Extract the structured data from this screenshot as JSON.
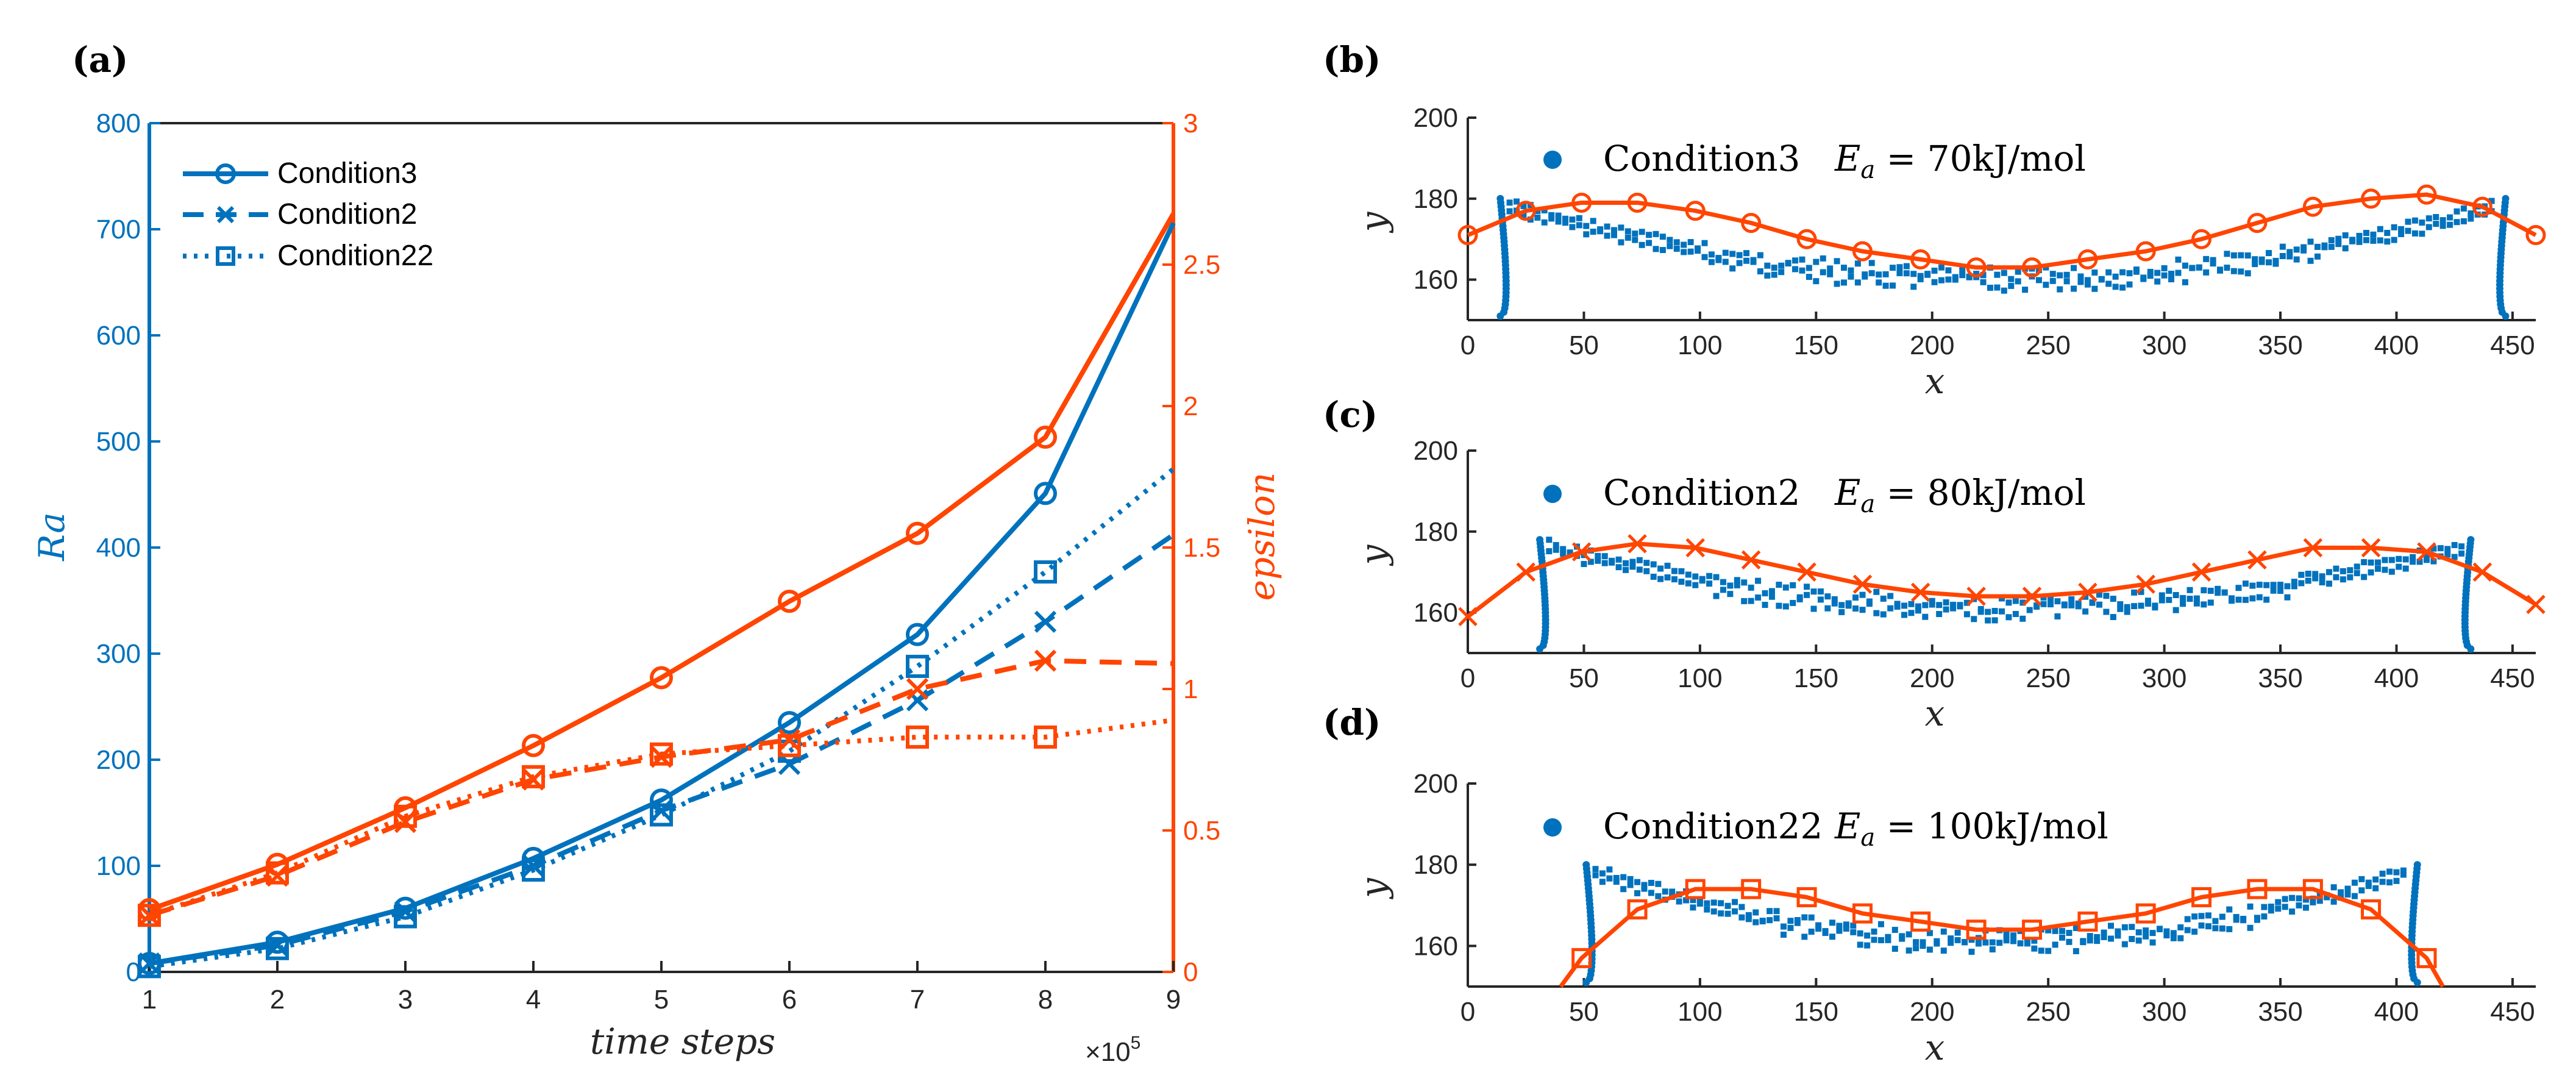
{
  "colors": {
    "blue": "#0072BD",
    "orange": "#FF4500",
    "axis": "#262626",
    "blueTick": "#0072BD"
  },
  "chart_data": [
    {
      "id": "a",
      "panel_label": "(a)",
      "type": "line",
      "xlabel": "time steps",
      "x_multiplier": "×10",
      "x_multiplier_exp": "5",
      "ylabel_left": "Ra",
      "ylabel_right": "epsilon",
      "xlim": [
        1,
        9
      ],
      "ylim_left": [
        0,
        800
      ],
      "ylim_right": [
        0,
        3
      ],
      "xticks": [
        1,
        2,
        3,
        4,
        5,
        6,
        7,
        8,
        9
      ],
      "yticks_left": [
        "0",
        "100",
        "200",
        "300",
        "400",
        "500",
        "600",
        "700",
        "800"
      ],
      "yticks_right": [
        "0",
        "0.5",
        "1",
        "1.5",
        "2",
        "2.5",
        "3"
      ],
      "legend": [
        "Condition3",
        "Condition2",
        "Condition22"
      ],
      "x": [
        1,
        2,
        3,
        4,
        5,
        6,
        7,
        8,
        9
      ],
      "series": [
        {
          "name": "Condition3",
          "axis": "left",
          "style": "solid",
          "marker": "circle",
          "values": [
            8,
            28,
            60,
            107,
            162,
            235,
            318,
            451,
            706
          ]
        },
        {
          "name": "Condition2",
          "axis": "left",
          "style": "dashed",
          "marker": "x",
          "values": [
            8,
            25,
            57,
            100,
            152,
            196,
            256,
            330,
            412
          ]
        },
        {
          "name": "Condition22",
          "axis": "left",
          "style": "dotted",
          "marker": "square",
          "values": [
            5,
            22,
            52,
            96,
            148,
            208,
            288,
            377,
            474
          ]
        },
        {
          "name": "Condition3",
          "axis": "right",
          "style": "solid",
          "marker": "circle",
          "values": [
            0.22,
            0.38,
            0.58,
            0.8,
            1.04,
            1.31,
            1.55,
            1.89,
            2.68
          ]
        },
        {
          "name": "Condition2",
          "axis": "right",
          "style": "dashed",
          "marker": "x",
          "values": [
            0.2,
            0.34,
            0.53,
            0.68,
            0.76,
            0.82,
            1.0,
            1.1,
            1.09
          ]
        },
        {
          "name": "Condition22",
          "axis": "right",
          "style": "dotted",
          "marker": "square",
          "values": [
            0.2,
            0.35,
            0.55,
            0.69,
            0.77,
            0.8,
            0.83,
            0.83,
            0.89
          ]
        }
      ]
    },
    {
      "id": "b",
      "panel_label": "(b)",
      "type": "scatter+line",
      "xlabel": "x",
      "ylabel": "y",
      "xlim": [
        0,
        460
      ],
      "ylim": [
        150,
        200
      ],
      "xticks": [
        "0",
        "50",
        "100",
        "150",
        "200",
        "250",
        "300",
        "350",
        "400",
        "450"
      ],
      "yticks": [
        "160",
        "180",
        "200"
      ],
      "legend_name": "Condition3",
      "legend_ea_symbol": "E",
      "legend_ea_sub": "a",
      "legend_ea_value": " = 70kJ/mol",
      "fit_marker": "circle",
      "fit": {
        "x": [
          0,
          25,
          49,
          73,
          98,
          122,
          146,
          170,
          195,
          219,
          243,
          267,
          292,
          316,
          340,
          364,
          389,
          413,
          437,
          460
        ],
        "y": [
          171,
          177,
          179,
          179,
          177,
          174,
          170,
          167,
          165,
          163,
          163,
          165,
          167,
          170,
          174,
          178,
          180,
          181,
          178,
          171
        ]
      },
      "profile": {
        "x_left": 18,
        "x_right": 443,
        "y_top": 180,
        "y_mid": 163
      }
    },
    {
      "id": "c",
      "panel_label": "(c)",
      "type": "scatter+line",
      "xlabel": "x",
      "ylabel": "y",
      "xlim": [
        0,
        460
      ],
      "ylim": [
        150,
        200
      ],
      "xticks": [
        "0",
        "50",
        "100",
        "150",
        "200",
        "250",
        "300",
        "350",
        "400",
        "450"
      ],
      "yticks": [
        "160",
        "180",
        "200"
      ],
      "legend_name": "Condition2",
      "legend_ea_symbol": "E",
      "legend_ea_sub": "a",
      "legend_ea_value": " = 80kJ/mol",
      "fit_marker": "x",
      "fit": {
        "x": [
          0,
          25,
          49,
          73,
          98,
          122,
          146,
          170,
          195,
          219,
          243,
          267,
          292,
          316,
          340,
          364,
          389,
          413,
          437,
          460
        ],
        "y": [
          159,
          170,
          175,
          177,
          176,
          173,
          170,
          167,
          165,
          164,
          164,
          165,
          167,
          170,
          173,
          176,
          176,
          175,
          170,
          162
        ]
      },
      "profile": {
        "x_left": 35,
        "x_right": 428,
        "y_top": 178,
        "y_mid": 164
      }
    },
    {
      "id": "d",
      "panel_label": "(d)",
      "type": "scatter+line",
      "xlabel": "x",
      "ylabel": "y",
      "xlim": [
        0,
        460
      ],
      "ylim": [
        150,
        200
      ],
      "xticks": [
        "0",
        "50",
        "100",
        "150",
        "200",
        "250",
        "300",
        "350",
        "400",
        "450"
      ],
      "yticks": [
        "160",
        "180",
        "200"
      ],
      "legend_name": "Condition22",
      "legend_ea_symbol": "E",
      "legend_ea_sub": "a",
      "legend_ea_value": " = 100kJ/mol",
      "fit_marker": "square",
      "fit": {
        "x": [
          40,
          49,
          73,
          98,
          122,
          146,
          170,
          195,
          219,
          243,
          267,
          292,
          316,
          340,
          364,
          389,
          413,
          420
        ],
        "y": [
          150,
          157,
          169,
          174,
          174,
          172,
          168,
          166,
          164,
          164,
          166,
          168,
          172,
          174,
          174,
          169,
          157,
          150
        ]
      },
      "profile": {
        "x_left": 55,
        "x_right": 405,
        "y_top": 180,
        "y_mid": 164
      }
    }
  ]
}
